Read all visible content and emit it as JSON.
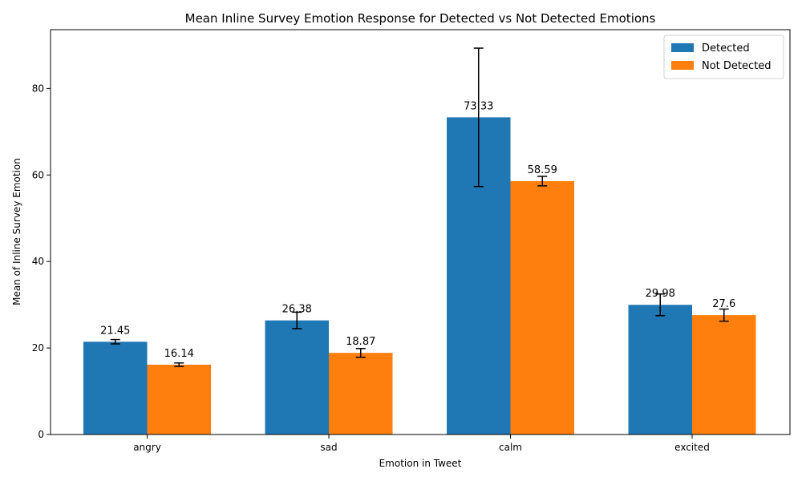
{
  "chart_data": {
    "type": "bar",
    "title": "Mean Inline Survey Emotion Response for Detected vs Not Detected Emotions",
    "xlabel": "Emotion in Tweet",
    "ylabel": "Mean of Inline Survey Emotion",
    "categories": [
      "angry",
      "sad",
      "calm",
      "excited"
    ],
    "ylim": [
      0,
      93.6
    ],
    "yticks": [
      0,
      20,
      40,
      60,
      80
    ],
    "legend_position": "top-right",
    "series": [
      {
        "name": "Detected",
        "color": "#1f77b4",
        "values": [
          21.45,
          26.38,
          73.33,
          29.98
        ],
        "value_labels": [
          "21.45",
          "26.38",
          "73.33",
          "29.98"
        ],
        "errors": [
          0.5,
          1.9,
          16.0,
          2.5
        ]
      },
      {
        "name": "Not Detected",
        "color": "#ff7f0e",
        "values": [
          16.14,
          18.87,
          58.59,
          27.6
        ],
        "value_labels": [
          "16.14",
          "18.87",
          "58.59",
          "27.6"
        ],
        "errors": [
          0.4,
          1.0,
          1.1,
          1.4
        ]
      }
    ]
  }
}
